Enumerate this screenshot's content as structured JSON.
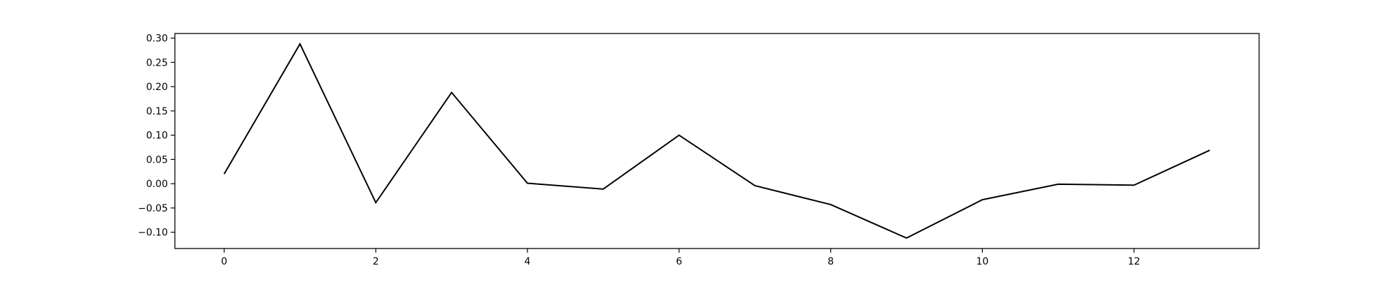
{
  "chart_data": {
    "type": "line",
    "title": "",
    "xlabel": "",
    "ylabel": "",
    "grid": false,
    "legend": "none",
    "xlim": [
      -0.65,
      13.65
    ],
    "ylim": [
      -0.1335,
      0.3095
    ],
    "x_ticks": [
      0,
      2,
      4,
      6,
      8,
      10,
      12
    ],
    "x_tick_labels": [
      "0",
      "2",
      "4",
      "6",
      "8",
      "10",
      "12"
    ],
    "y_ticks": [
      -0.1,
      -0.05,
      0.0,
      0.05,
      0.1,
      0.15,
      0.2,
      0.25,
      0.3
    ],
    "y_tick_labels": [
      "−0.10",
      "−0.05",
      "0.00",
      "0.05",
      "0.10",
      "0.15",
      "0.20",
      "0.25",
      "0.30"
    ],
    "series": [
      {
        "color": "#000000",
        "x": [
          0,
          1,
          2,
          3,
          4,
          5,
          6,
          7,
          8,
          9,
          10,
          11,
          12,
          13
        ],
        "y": [
          0.02,
          0.288,
          -0.039,
          0.188,
          0.001,
          -0.011,
          0.1,
          -0.004,
          -0.043,
          -0.112,
          -0.033,
          -0.001,
          -0.003,
          0.069
        ]
      }
    ]
  }
}
